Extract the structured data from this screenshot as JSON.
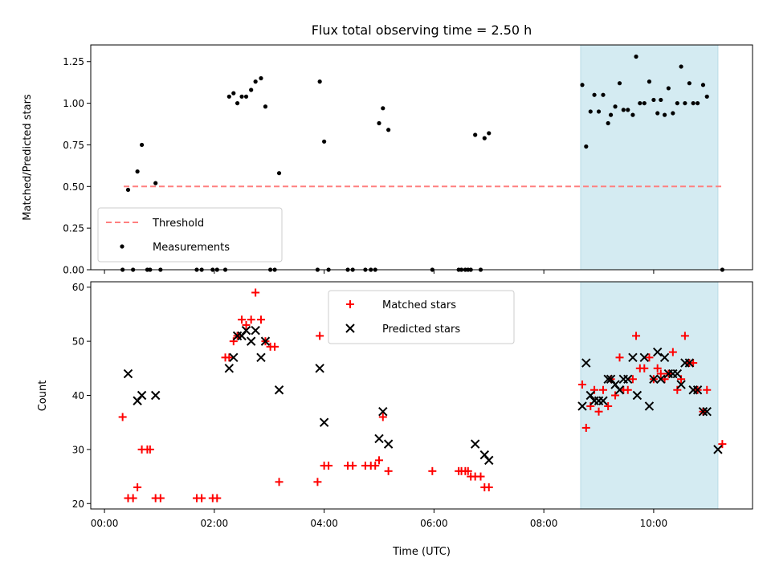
{
  "chart_data": {
    "title": "Flux total observing time = 2.50 h",
    "xlabel": "Time (UTC)",
    "x_units": "hours UTC",
    "xlim": [
      -0.25,
      11.8
    ],
    "x_ticks": [
      {
        "value": 0,
        "label": "00:00"
      },
      {
        "value": 2,
        "label": "02:00"
      },
      {
        "value": 4,
        "label": "04:00"
      },
      {
        "value": 6,
        "label": "06:00"
      },
      {
        "value": 8,
        "label": "08:00"
      },
      {
        "value": 10,
        "label": "10:00"
      }
    ],
    "highlight_span": {
      "x0": 8.67,
      "x1": 11.17,
      "color": "#d4ebf2"
    },
    "colors": {
      "threshold": "#ff7f7f",
      "measurement": "#000000",
      "matched": "#ff0000",
      "predicted": "#000000"
    },
    "panels": [
      {
        "type": "scatter",
        "ylabel": "Matched/Predicted stars",
        "ylim": [
          0,
          1.35
        ],
        "y_ticks": [
          "0.00",
          "0.25",
          "0.50",
          "0.75",
          "1.00",
          "1.25"
        ],
        "legend_position": "lower-left",
        "legend": [
          "Threshold",
          "Measurements"
        ],
        "threshold": {
          "y": 0.5,
          "x0": 0.35,
          "x1": 11.25
        },
        "measurements": [
          [
            0.33,
            0
          ],
          [
            0.43,
            0.48
          ],
          [
            0.52,
            0
          ],
          [
            0.6,
            0.59
          ],
          [
            0.68,
            0.75
          ],
          [
            0.78,
            0
          ],
          [
            0.83,
            0
          ],
          [
            0.93,
            0.52
          ],
          [
            1.02,
            0
          ],
          [
            1.68,
            0
          ],
          [
            1.77,
            0
          ],
          [
            1.97,
            0
          ],
          [
            2.05,
            0
          ],
          [
            2.2,
            0
          ],
          [
            2.27,
            1.04
          ],
          [
            2.35,
            1.06
          ],
          [
            2.42,
            1.0
          ],
          [
            2.5,
            1.04
          ],
          [
            2.58,
            1.04
          ],
          [
            2.67,
            1.08
          ],
          [
            2.75,
            1.13
          ],
          [
            2.85,
            1.15
          ],
          [
            2.93,
            0.98
          ],
          [
            3.02,
            0
          ],
          [
            3.1,
            0
          ],
          [
            3.18,
            0.58
          ],
          [
            3.88,
            0
          ],
          [
            3.92,
            1.13
          ],
          [
            4.0,
            0.77
          ],
          [
            4.08,
            0
          ],
          [
            4.43,
            0
          ],
          [
            4.52,
            0
          ],
          [
            4.75,
            0
          ],
          [
            4.85,
            0
          ],
          [
            4.93,
            0
          ],
          [
            5.0,
            0.88
          ],
          [
            5.07,
            0.97
          ],
          [
            5.17,
            0.84
          ],
          [
            5.97,
            0
          ],
          [
            6.45,
            0
          ],
          [
            6.5,
            0
          ],
          [
            6.57,
            0
          ],
          [
            6.62,
            0
          ],
          [
            6.67,
            0
          ],
          [
            6.75,
            0.81
          ],
          [
            6.85,
            0
          ],
          [
            6.92,
            0.79
          ],
          [
            7.0,
            0.82
          ],
          [
            8.7,
            1.11
          ],
          [
            8.77,
            0.74
          ],
          [
            8.85,
            0.95
          ],
          [
            8.92,
            1.05
          ],
          [
            9.0,
            0.95
          ],
          [
            9.08,
            1.05
          ],
          [
            9.17,
            0.88
          ],
          [
            9.22,
            0.93
          ],
          [
            9.3,
            0.98
          ],
          [
            9.38,
            1.12
          ],
          [
            9.45,
            0.96
          ],
          [
            9.53,
            0.96
          ],
          [
            9.62,
            0.93
          ],
          [
            9.68,
            1.28
          ],
          [
            9.75,
            1.0
          ],
          [
            9.83,
            1.0
          ],
          [
            9.92,
            1.13
          ],
          [
            10.0,
            1.02
          ],
          [
            10.07,
            0.94
          ],
          [
            10.13,
            1.02
          ],
          [
            10.2,
            0.93
          ],
          [
            10.27,
            1.09
          ],
          [
            10.35,
            0.94
          ],
          [
            10.43,
            1.0
          ],
          [
            10.5,
            1.22
          ],
          [
            10.57,
            1.0
          ],
          [
            10.65,
            1.12
          ],
          [
            10.72,
            1.0
          ],
          [
            10.8,
            1.0
          ],
          [
            10.9,
            1.11
          ],
          [
            10.97,
            1.04
          ],
          [
            11.25,
            0
          ]
        ]
      },
      {
        "type": "scatter",
        "ylabel": "Count",
        "ylim": [
          19,
          61
        ],
        "y_ticks": [
          20,
          30,
          40,
          50,
          60
        ],
        "legend_position": "upper-center",
        "series": [
          {
            "name": "Matched stars",
            "marker": "+",
            "points": [
              [
                0.33,
                36
              ],
              [
                0.43,
                21
              ],
              [
                0.52,
                21
              ],
              [
                0.6,
                23
              ],
              [
                0.68,
                30
              ],
              [
                0.78,
                30
              ],
              [
                0.83,
                30
              ],
              [
                0.93,
                21
              ],
              [
                1.02,
                21
              ],
              [
                1.68,
                21
              ],
              [
                1.77,
                21
              ],
              [
                1.97,
                21
              ],
              [
                2.05,
                21
              ],
              [
                2.2,
                47
              ],
              [
                2.27,
                47
              ],
              [
                2.35,
                50
              ],
              [
                2.42,
                51
              ],
              [
                2.5,
                54
              ],
              [
                2.58,
                53
              ],
              [
                2.67,
                54
              ],
              [
                2.75,
                59
              ],
              [
                2.85,
                54
              ],
              [
                2.93,
                50
              ],
              [
                3.02,
                49
              ],
              [
                3.1,
                49
              ],
              [
                3.18,
                24
              ],
              [
                3.88,
                24
              ],
              [
                3.92,
                51
              ],
              [
                4.0,
                27
              ],
              [
                4.08,
                27
              ],
              [
                4.43,
                27
              ],
              [
                4.52,
                27
              ],
              [
                4.75,
                27
              ],
              [
                4.85,
                27
              ],
              [
                4.93,
                27
              ],
              [
                5.0,
                28
              ],
              [
                5.07,
                36
              ],
              [
                5.17,
                26
              ],
              [
                5.97,
                26
              ],
              [
                6.45,
                26
              ],
              [
                6.5,
                26
              ],
              [
                6.57,
                26
              ],
              [
                6.62,
                26
              ],
              [
                6.67,
                25
              ],
              [
                6.75,
                25
              ],
              [
                6.85,
                25
              ],
              [
                6.92,
                23
              ],
              [
                7.0,
                23
              ],
              [
                8.7,
                42
              ],
              [
                8.77,
                34
              ],
              [
                8.85,
                38
              ],
              [
                8.92,
                41
              ],
              [
                9.0,
                37
              ],
              [
                9.08,
                41
              ],
              [
                9.17,
                38
              ],
              [
                9.22,
                43
              ],
              [
                9.3,
                40
              ],
              [
                9.38,
                47
              ],
              [
                9.45,
                41
              ],
              [
                9.53,
                41
              ],
              [
                9.62,
                43
              ],
              [
                9.68,
                51
              ],
              [
                9.75,
                45
              ],
              [
                9.83,
                45
              ],
              [
                9.92,
                47
              ],
              [
                10.0,
                43
              ],
              [
                10.07,
                45
              ],
              [
                10.13,
                44
              ],
              [
                10.2,
                43
              ],
              [
                10.27,
                44
              ],
              [
                10.35,
                48
              ],
              [
                10.43,
                41
              ],
              [
                10.5,
                43
              ],
              [
                10.57,
                51
              ],
              [
                10.65,
                46
              ],
              [
                10.72,
                46
              ],
              [
                10.8,
                41
              ],
              [
                10.9,
                37
              ],
              [
                10.97,
                41
              ],
              [
                11.25,
                31
              ]
            ]
          },
          {
            "name": "Predicted stars",
            "marker": "x",
            "points": [
              [
                0.43,
                44
              ],
              [
                0.6,
                39
              ],
              [
                0.68,
                40
              ],
              [
                0.93,
                40
              ],
              [
                2.27,
                45
              ],
              [
                2.35,
                47
              ],
              [
                2.42,
                51
              ],
              [
                2.5,
                51
              ],
              [
                2.58,
                52
              ],
              [
                2.67,
                50
              ],
              [
                2.75,
                52
              ],
              [
                2.85,
                47
              ],
              [
                2.93,
                50
              ],
              [
                3.18,
                41
              ],
              [
                3.92,
                45
              ],
              [
                4.0,
                35
              ],
              [
                5.0,
                32
              ],
              [
                5.07,
                37
              ],
              [
                5.17,
                31
              ],
              [
                6.75,
                31
              ],
              [
                6.92,
                29
              ],
              [
                7.0,
                28
              ],
              [
                8.7,
                38
              ],
              [
                8.77,
                46
              ],
              [
                8.85,
                40
              ],
              [
                8.92,
                39
              ],
              [
                9.0,
                39
              ],
              [
                9.08,
                39
              ],
              [
                9.17,
                43
              ],
              [
                9.22,
                43
              ],
              [
                9.3,
                42
              ],
              [
                9.38,
                41
              ],
              [
                9.45,
                43
              ],
              [
                9.53,
                43
              ],
              [
                9.62,
                47
              ],
              [
                9.7,
                40
              ],
              [
                9.83,
                47
              ],
              [
                9.92,
                38
              ],
              [
                10.0,
                43
              ],
              [
                10.07,
                48
              ],
              [
                10.13,
                43
              ],
              [
                10.2,
                47
              ],
              [
                10.27,
                44
              ],
              [
                10.35,
                44
              ],
              [
                10.43,
                44
              ],
              [
                10.5,
                42
              ],
              [
                10.57,
                46
              ],
              [
                10.65,
                46
              ],
              [
                10.72,
                41
              ],
              [
                10.8,
                41
              ],
              [
                10.9,
                37
              ],
              [
                10.97,
                37
              ],
              [
                11.17,
                30
              ]
            ]
          }
        ]
      }
    ]
  }
}
